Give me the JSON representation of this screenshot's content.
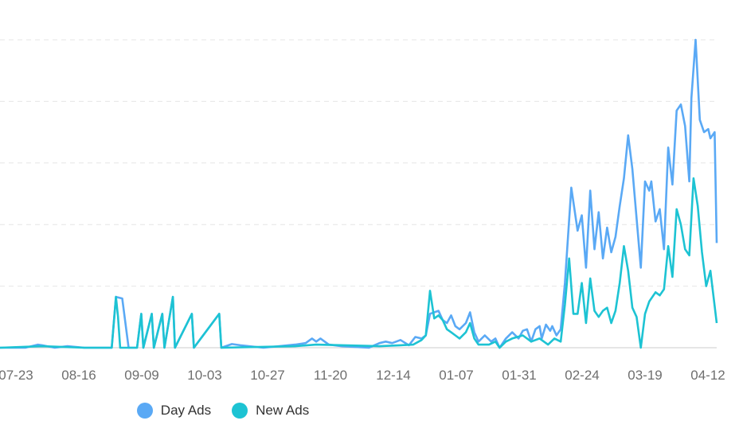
{
  "chart_data": {
    "type": "line",
    "title": "",
    "xlabel": "",
    "ylabel": "",
    "ylim": [
      0,
      10
    ],
    "grid": true,
    "legend": "bottom",
    "x_tick_labels": [
      "07-23",
      "08-16",
      "09-09",
      "10-03",
      "10-27",
      "11-20",
      "12-14",
      "01-07",
      "01-31",
      "02-24",
      "03-19",
      "04-12"
    ],
    "series": [
      {
        "name": "Day Ads",
        "color": "#5aa9f5",
        "points": [
          [
            0,
            0
          ],
          [
            12,
            0
          ],
          [
            18,
            0.1
          ],
          [
            20,
            0.08
          ],
          [
            26,
            0
          ],
          [
            32,
            0.05
          ],
          [
            40,
            0
          ],
          [
            53,
            0
          ],
          [
            55,
            1.65
          ],
          [
            58,
            1.6
          ],
          [
            61,
            0
          ],
          [
            65,
            0
          ],
          [
            67,
            1.1
          ],
          [
            68,
            0
          ],
          [
            72,
            1.1
          ],
          [
            73,
            0
          ],
          [
            77,
            1.1
          ],
          [
            78,
            0
          ],
          [
            82,
            1.65
          ],
          [
            83,
            0
          ],
          [
            91,
            1.1
          ],
          [
            92,
            0
          ],
          [
            104,
            1.1
          ],
          [
            105,
            0
          ],
          [
            110,
            0.12
          ],
          [
            114,
            0.08
          ],
          [
            125,
            0
          ],
          [
            140,
            0.1
          ],
          [
            145,
            0.15
          ],
          [
            148,
            0.3
          ],
          [
            150,
            0.2
          ],
          [
            152,
            0.3
          ],
          [
            156,
            0.1
          ],
          [
            162,
            0.05
          ],
          [
            175,
            0
          ],
          [
            180,
            0.15
          ],
          [
            183,
            0.2
          ],
          [
            186,
            0.15
          ],
          [
            190,
            0.25
          ],
          [
            194,
            0.08
          ],
          [
            197,
            0.35
          ],
          [
            200,
            0.3
          ],
          [
            202,
            0.4
          ],
          [
            204,
            1.1
          ],
          [
            206,
            1.15
          ],
          [
            208,
            1.2
          ],
          [
            210,
            0.9
          ],
          [
            212,
            0.8
          ],
          [
            214,
            1.05
          ],
          [
            216,
            0.7
          ],
          [
            218,
            0.6
          ],
          [
            221,
            0.8
          ],
          [
            223,
            1.15
          ],
          [
            225,
            0.5
          ],
          [
            227,
            0.2
          ],
          [
            230,
            0.4
          ],
          [
            233,
            0.2
          ],
          [
            235,
            0.3
          ],
          [
            237,
            0
          ],
          [
            240,
            0.3
          ],
          [
            243,
            0.5
          ],
          [
            246,
            0.3
          ],
          [
            248,
            0.55
          ],
          [
            250,
            0.6
          ],
          [
            252,
            0.2
          ],
          [
            254,
            0.6
          ],
          [
            256,
            0.7
          ],
          [
            257,
            0.3
          ],
          [
            259,
            0.75
          ],
          [
            261,
            0.55
          ],
          [
            262,
            0.7
          ],
          [
            264,
            0.4
          ],
          [
            266,
            0.6
          ],
          [
            268,
            2.1
          ],
          [
            271,
            5.2
          ],
          [
            274,
            3.8
          ],
          [
            276,
            4.3
          ],
          [
            278,
            2.6
          ],
          [
            280,
            5.1
          ],
          [
            282,
            3.2
          ],
          [
            284,
            4.4
          ],
          [
            286,
            2.9
          ],
          [
            288,
            3.9
          ],
          [
            290,
            3.1
          ],
          [
            292,
            3.6
          ],
          [
            294,
            4.6
          ],
          [
            296,
            5.5
          ],
          [
            298,
            6.9
          ],
          [
            300,
            5.8
          ],
          [
            302,
            4.2
          ],
          [
            304,
            2.6
          ],
          [
            306,
            5.4
          ],
          [
            308,
            5.1
          ],
          [
            309,
            5.4
          ],
          [
            311,
            4.1
          ],
          [
            313,
            4.5
          ],
          [
            315,
            3.2
          ],
          [
            317,
            6.5
          ],
          [
            319,
            5.3
          ],
          [
            321,
            7.7
          ],
          [
            323,
            7.9
          ],
          [
            325,
            7.2
          ],
          [
            327,
            5.4
          ],
          [
            328,
            8.1
          ],
          [
            330,
            10.0
          ],
          [
            332,
            7.4
          ],
          [
            334,
            7.0
          ],
          [
            336,
            7.1
          ],
          [
            337,
            6.8
          ],
          [
            339,
            7.0
          ],
          [
            340,
            3.4
          ]
        ]
      },
      {
        "name": "New Ads",
        "color": "#1dc3d3",
        "points": [
          [
            0,
            0
          ],
          [
            20,
            0.05
          ],
          [
            40,
            0
          ],
          [
            53,
            0
          ],
          [
            55,
            1.65
          ],
          [
            56,
            1.0
          ],
          [
            57,
            0
          ],
          [
            65,
            0
          ],
          [
            67,
            1.1
          ],
          [
            68,
            0
          ],
          [
            72,
            1.1
          ],
          [
            73,
            0
          ],
          [
            77,
            1.1
          ],
          [
            78,
            0
          ],
          [
            82,
            1.65
          ],
          [
            83,
            0
          ],
          [
            91,
            1.1
          ],
          [
            92,
            0
          ],
          [
            104,
            1.1
          ],
          [
            105,
            0
          ],
          [
            140,
            0.05
          ],
          [
            150,
            0.1
          ],
          [
            180,
            0.05
          ],
          [
            190,
            0.08
          ],
          [
            196,
            0.1
          ],
          [
            200,
            0.25
          ],
          [
            202,
            0.4
          ],
          [
            204,
            1.85
          ],
          [
            206,
            0.95
          ],
          [
            208,
            1.05
          ],
          [
            210,
            0.9
          ],
          [
            212,
            0.6
          ],
          [
            214,
            0.5
          ],
          [
            216,
            0.4
          ],
          [
            218,
            0.3
          ],
          [
            221,
            0.5
          ],
          [
            223,
            0.8
          ],
          [
            225,
            0.3
          ],
          [
            227,
            0.1
          ],
          [
            232,
            0.1
          ],
          [
            235,
            0.2
          ],
          [
            237,
            0
          ],
          [
            240,
            0.2
          ],
          [
            243,
            0.3
          ],
          [
            248,
            0.4
          ],
          [
            252,
            0.2
          ],
          [
            256,
            0.3
          ],
          [
            260,
            0.1
          ],
          [
            263,
            0.3
          ],
          [
            266,
            0.2
          ],
          [
            268,
            1.4
          ],
          [
            270,
            2.9
          ],
          [
            272,
            1.1
          ],
          [
            274,
            1.1
          ],
          [
            276,
            2.1
          ],
          [
            278,
            0.8
          ],
          [
            280,
            2.25
          ],
          [
            282,
            1.2
          ],
          [
            284,
            1.0
          ],
          [
            286,
            1.2
          ],
          [
            288,
            1.3
          ],
          [
            290,
            0.8
          ],
          [
            292,
            1.2
          ],
          [
            294,
            2.1
          ],
          [
            296,
            3.3
          ],
          [
            298,
            2.5
          ],
          [
            300,
            1.3
          ],
          [
            302,
            1.0
          ],
          [
            304,
            0
          ],
          [
            306,
            1.1
          ],
          [
            308,
            1.5
          ],
          [
            311,
            1.8
          ],
          [
            313,
            1.7
          ],
          [
            315,
            1.9
          ],
          [
            317,
            3.3
          ],
          [
            319,
            2.3
          ],
          [
            321,
            4.5
          ],
          [
            323,
            4.0
          ],
          [
            325,
            3.2
          ],
          [
            327,
            3.0
          ],
          [
            329,
            5.5
          ],
          [
            331,
            4.6
          ],
          [
            333,
            3.1
          ],
          [
            335,
            2.0
          ],
          [
            337,
            2.5
          ],
          [
            340,
            0.8
          ]
        ]
      }
    ]
  }
}
